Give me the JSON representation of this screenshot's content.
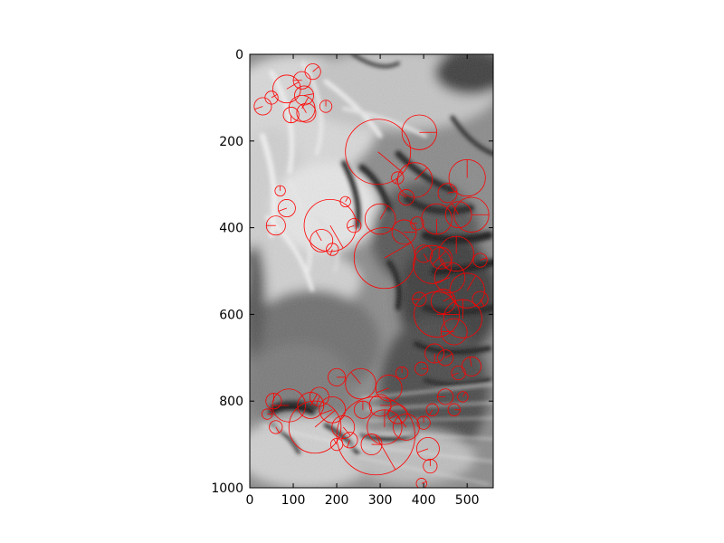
{
  "figure": {
    "description_kind": "grayscale tiger face photo overlaid with red keypoint circles",
    "overlay_color": "#ff0000",
    "image_extent": {
      "x": [
        0,
        560
      ],
      "y": [
        0,
        1000
      ]
    },
    "x_ticks": [
      0,
      100,
      200,
      300,
      400,
      500
    ],
    "y_ticks": [
      0,
      200,
      400,
      600,
      800,
      1000
    ],
    "x_tick_labels": [
      "0",
      "100",
      "200",
      "300",
      "400",
      "500"
    ],
    "y_tick_labels": [
      "0",
      "200",
      "400",
      "600",
      "800",
      "1000"
    ]
  },
  "keypoints": [
    [
      85,
      80,
      32,
      30
    ],
    [
      145,
      40,
      18,
      40
    ],
    [
      125,
      95,
      22,
      10
    ],
    [
      120,
      125,
      30,
      60
    ],
    [
      130,
      135,
      22,
      120
    ],
    [
      30,
      120,
      20,
      200
    ],
    [
      295,
      225,
      75,
      320
    ],
    [
      390,
      180,
      40,
      0
    ],
    [
      380,
      290,
      40,
      45
    ],
    [
      500,
      285,
      42,
      90
    ],
    [
      340,
      285,
      14,
      250
    ],
    [
      70,
      315,
      12,
      90
    ],
    [
      85,
      355,
      20,
      200
    ],
    [
      60,
      395,
      22,
      180
    ],
    [
      185,
      395,
      60,
      300
    ],
    [
      165,
      430,
      26,
      120
    ],
    [
      190,
      450,
      14,
      250
    ],
    [
      310,
      470,
      70,
      30
    ],
    [
      300,
      380,
      35,
      60
    ],
    [
      355,
      410,
      28,
      0
    ],
    [
      385,
      390,
      15,
      180
    ],
    [
      430,
      380,
      35,
      270
    ],
    [
      480,
      370,
      30,
      120
    ],
    [
      510,
      370,
      40,
      0
    ],
    [
      420,
      485,
      44,
      45
    ],
    [
      440,
      470,
      25,
      300
    ],
    [
      475,
      460,
      40,
      90
    ],
    [
      530,
      475,
      16,
      20
    ],
    [
      460,
      515,
      35,
      200
    ],
    [
      500,
      545,
      40,
      60
    ],
    [
      530,
      565,
      18,
      300
    ],
    [
      390,
      565,
      16,
      180
    ],
    [
      430,
      600,
      52,
      0
    ],
    [
      490,
      610,
      44,
      90
    ],
    [
      470,
      640,
      30,
      180
    ],
    [
      425,
      690,
      22,
      270
    ],
    [
      450,
      700,
      18,
      30
    ],
    [
      480,
      735,
      16,
      200
    ],
    [
      510,
      720,
      22,
      100
    ],
    [
      395,
      725,
      15,
      0
    ],
    [
      350,
      735,
      14,
      90
    ],
    [
      320,
      770,
      30,
      200
    ],
    [
      255,
      760,
      35,
      130
    ],
    [
      200,
      745,
      20,
      0
    ],
    [
      160,
      790,
      22,
      250
    ],
    [
      140,
      810,
      30,
      60
    ],
    [
      90,
      810,
      38,
      180
    ],
    [
      55,
      800,
      18,
      90
    ],
    [
      40,
      830,
      12,
      0
    ],
    [
      60,
      860,
      15,
      300
    ],
    [
      150,
      860,
      60,
      40
    ],
    [
      190,
      820,
      30,
      200
    ],
    [
      215,
      860,
      26,
      310
    ],
    [
      260,
      820,
      20,
      90
    ],
    [
      300,
      810,
      25,
      0
    ],
    [
      340,
      830,
      22,
      210
    ],
    [
      360,
      860,
      30,
      130
    ],
    [
      290,
      880,
      90,
      300
    ],
    [
      310,
      860,
      40,
      90
    ],
    [
      280,
      900,
      24,
      0
    ],
    [
      230,
      890,
      18,
      250
    ],
    [
      200,
      900,
      14,
      120
    ],
    [
      410,
      910,
      26,
      200
    ],
    [
      415,
      950,
      16,
      90
    ],
    [
      395,
      990,
      12,
      20
    ],
    [
      450,
      790,
      18,
      180
    ],
    [
      490,
      790,
      12,
      60
    ],
    [
      420,
      820,
      14,
      240
    ],
    [
      470,
      820,
      14,
      0
    ],
    [
      400,
      850,
      15,
      90
    ],
    [
      220,
      340,
      12,
      60
    ],
    [
      240,
      395,
      16,
      200
    ],
    [
      445,
      570,
      28,
      30
    ],
    [
      400,
      460,
      20,
      300
    ],
    [
      360,
      330,
      18,
      150
    ],
    [
      455,
      320,
      22,
      10
    ],
    [
      95,
      140,
      18,
      270
    ],
    [
      50,
      100,
      15,
      30
    ],
    [
      120,
      60,
      20,
      180
    ],
    [
      175,
      120,
      14,
      90
    ]
  ]
}
